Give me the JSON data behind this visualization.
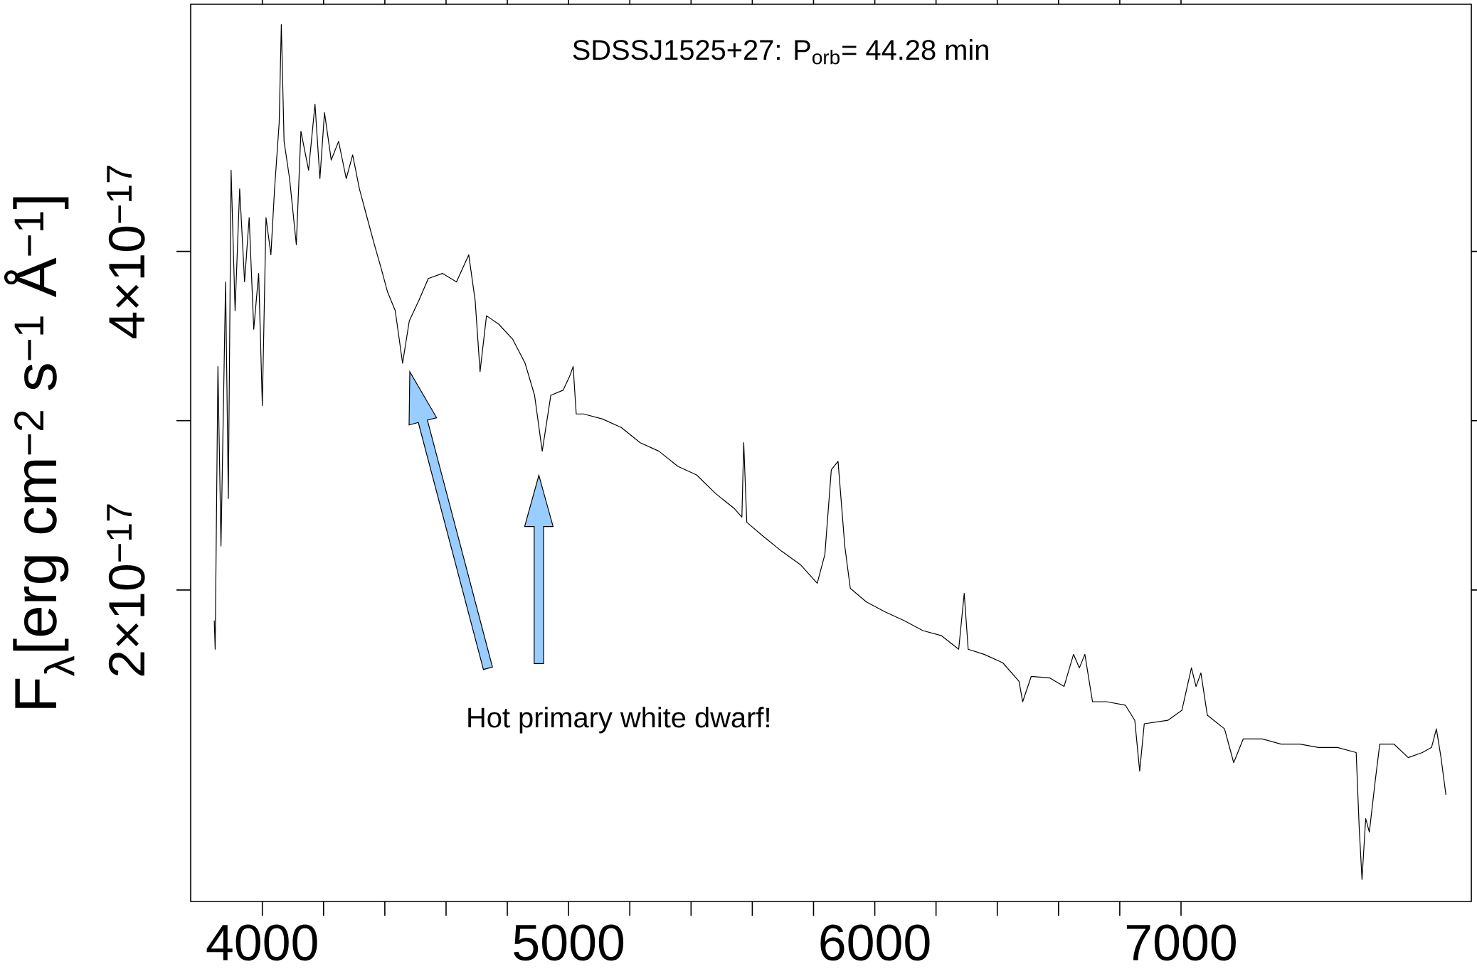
{
  "chart_data": {
    "type": "line",
    "title": "SDSSJ1525+27: P$_{orb}$= 44.28 min",
    "ylabel": "F$_{λ}$[erg cm$^{−2}$ s$^{−1}$ Å$^{−1}$]",
    "annotations": [
      "Hot primary white dwarf!"
    ],
    "color": "#000000",
    "x": [
      3843,
      3846,
      3855,
      3865,
      3880,
      3889,
      3898,
      3911,
      3926,
      3942,
      3957,
      3972,
      3988,
      4000,
      4012,
      4028,
      4040,
      4055,
      4062,
      4071,
      4089,
      4111,
      4126,
      4151,
      4172,
      4188,
      4203,
      4225,
      4249,
      4274,
      4295,
      4317,
      4342,
      4366,
      4388,
      4409,
      4434,
      4458,
      4480,
      4511,
      4542,
      4588,
      4634,
      4674,
      4695,
      4711,
      4732,
      4772,
      4818,
      4858,
      4889,
      4914,
      4942,
      4982,
      5003,
      5015,
      5025,
      5049,
      5111,
      5172,
      5234,
      5295,
      5357,
      5418,
      5480,
      5542,
      5566,
      5572,
      5582,
      5634,
      5695,
      5757,
      5812,
      5837,
      5858,
      5880,
      5902,
      5920,
      5972,
      6034,
      6095,
      6157,
      6218,
      6274,
      6292,
      6305,
      6357,
      6418,
      6471,
      6483,
      6511,
      6572,
      6618,
      6649,
      6668,
      6686,
      6711,
      6757,
      6818,
      6849,
      6865,
      6880,
      6957,
      7003,
      7034,
      7049,
      7065,
      7086,
      7142,
      7172,
      7203,
      7265,
      7326,
      7388,
      7449,
      7511,
      7572,
      7582,
      7591,
      7603,
      7615,
      7634,
      7649,
      7695,
      7742,
      7788,
      7818,
      7834,
      7849,
      7865
    ],
    "values": [
      1.82e-17,
      1.65e-17,
      3.32e-17,
      2.26e-17,
      3.82e-17,
      2.54e-17,
      4.48e-17,
      3.65e-17,
      4.37e-17,
      3.82e-17,
      4.2e-17,
      3.54e-17,
      3.87e-17,
      3.09e-17,
      4.2e-17,
      3.98e-17,
      4.37e-17,
      4.76e-17,
      5.34e-17,
      4.65e-17,
      4.43e-17,
      4.04e-17,
      4.71e-17,
      4.48e-17,
      4.87e-17,
      4.43e-17,
      4.82e-17,
      4.54e-17,
      4.65e-17,
      4.43e-17,
      4.57e-17,
      4.37e-17,
      4.2e-17,
      4.04e-17,
      3.9e-17,
      3.76e-17,
      3.65e-17,
      3.34e-17,
      3.59e-17,
      3.71e-17,
      3.84e-17,
      3.87e-17,
      3.82e-17,
      3.98e-17,
      3.71e-17,
      3.29e-17,
      3.62e-17,
      3.57e-17,
      3.48e-17,
      3.34e-17,
      3.15e-17,
      2.82e-17,
      3.15e-17,
      3.18e-17,
      3.26e-17,
      3.32e-17,
      3.04e-17,
      3.04e-17,
      3.01e-17,
      2.96e-17,
      2.87e-17,
      2.82e-17,
      2.73e-17,
      2.68e-17,
      2.57e-17,
      2.48e-17,
      2.43e-17,
      2.87e-17,
      2.4e-17,
      2.32e-17,
      2.23e-17,
      2.15e-17,
      2.04e-17,
      2.21e-17,
      2.71e-17,
      2.76e-17,
      2.26e-17,
      2.01e-17,
      1.93e-17,
      1.87e-17,
      1.82e-17,
      1.76e-17,
      1.73e-17,
      1.65e-17,
      1.98e-17,
      1.65e-17,
      1.62e-17,
      1.57e-17,
      1.46e-17,
      1.34e-17,
      1.49e-17,
      1.48e-17,
      1.43e-17,
      1.62e-17,
      1.54e-17,
      1.62e-17,
      1.34e-17,
      1.34e-17,
      1.32e-17,
      1.23e-17,
      9.3e-18,
      1.21e-17,
      1.23e-17,
      1.29e-17,
      1.54e-17,
      1.43e-17,
      1.51e-17,
      1.26e-17,
      1.18e-17,
      9.8e-18,
      1.12e-17,
      1.12e-17,
      1.09e-17,
      1.09e-17,
      1.07e-17,
      1.07e-17,
      1.04e-17,
      5.9e-18,
      2.9e-18,
      6.5e-18,
      5.7e-18,
      8.7e-18,
      1.09e-17,
      1.09e-17,
      1.01e-17,
      1.04e-17,
      1.07e-17,
      1.18e-17,
      1.01e-17,
      7.9e-18
    ],
    "xlim": [
      3766,
      7948
    ],
    "ylim": [
      1.6e-18,
      5.46e-17
    ],
    "xticks": [
      4000,
      5000,
      6000,
      7000
    ],
    "yticks": [
      {
        "value": 2e-17,
        "label": "2×10$^{−17}$"
      },
      {
        "value": 4e-17,
        "label": "4×10$^{−17}$"
      }
    ]
  }
}
